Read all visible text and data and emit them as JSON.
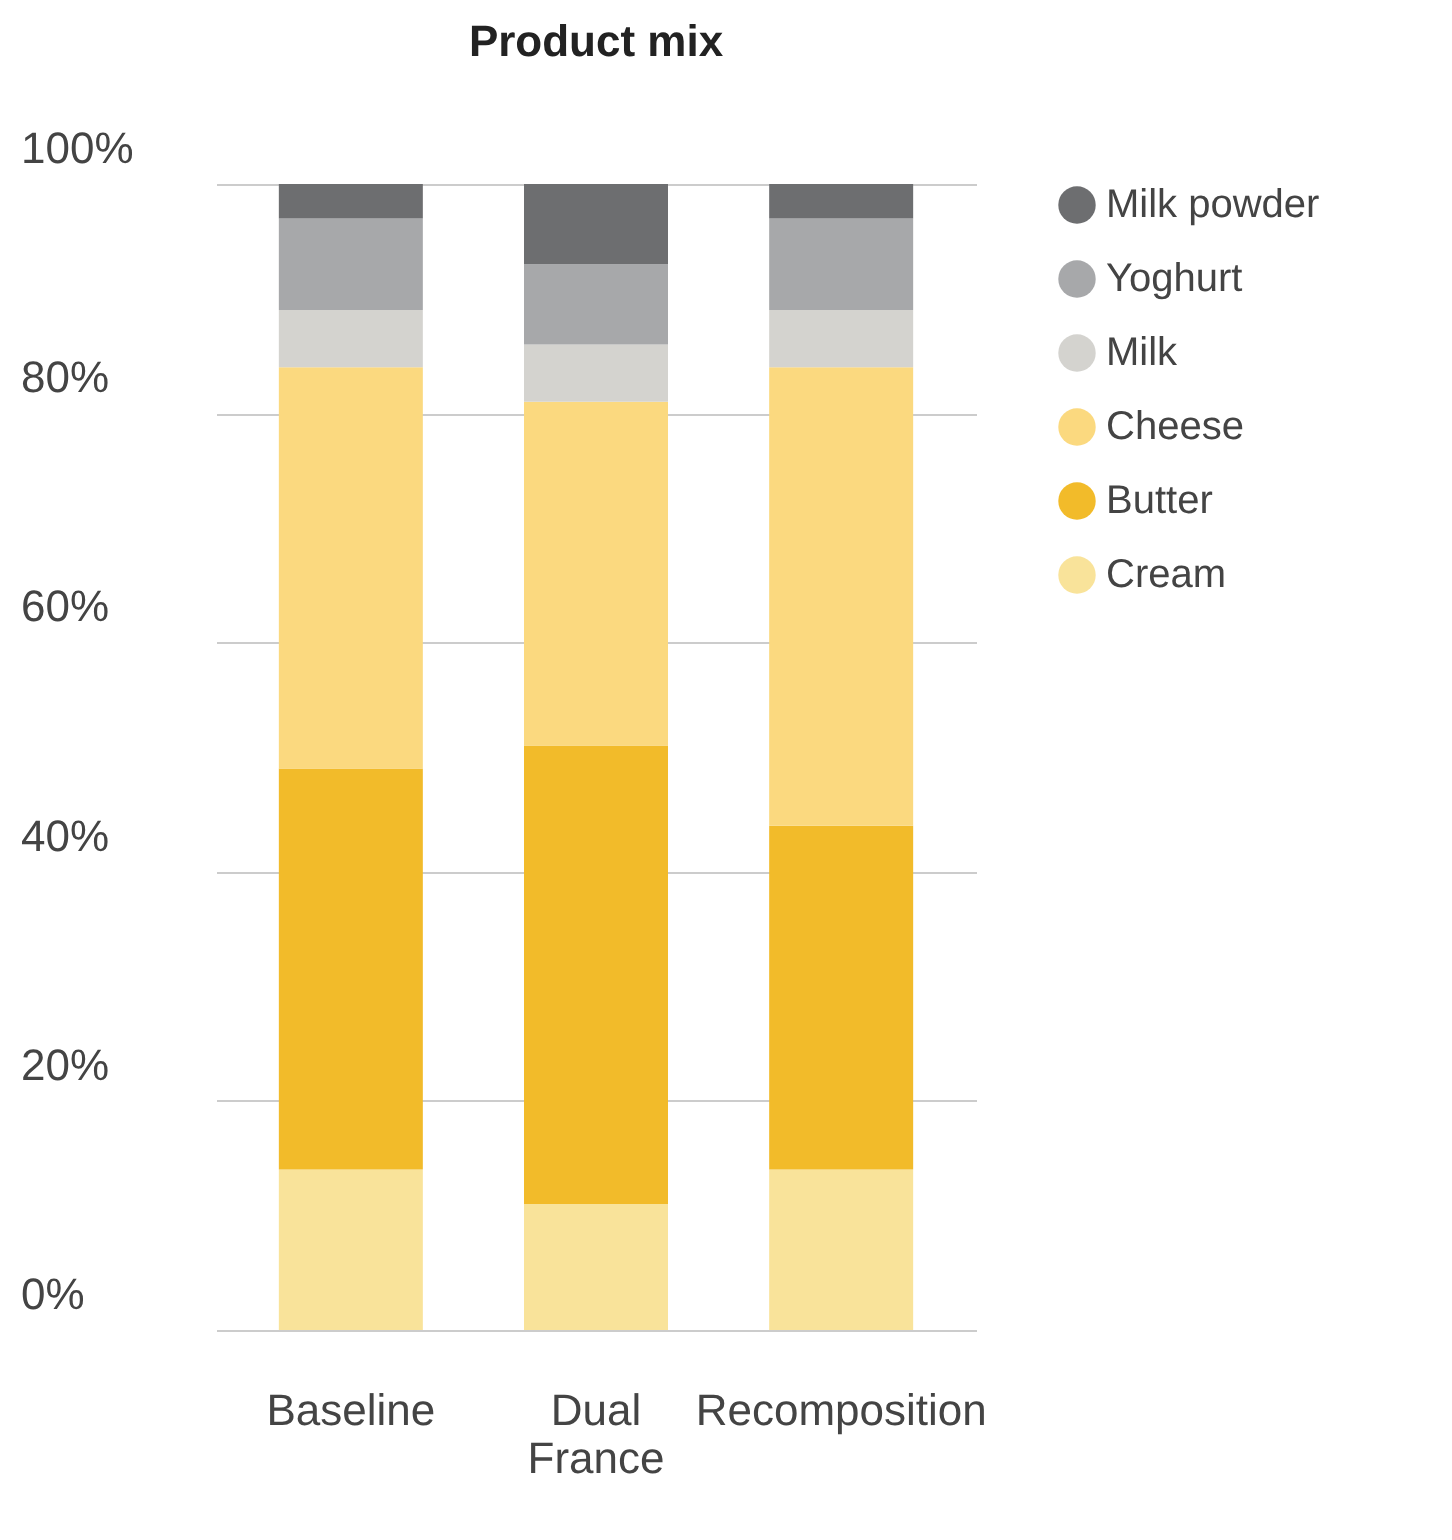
{
  "chart_data": {
    "type": "bar",
    "title": "Product mix",
    "stacked": true,
    "categories": [
      "Baseline",
      "Dual France",
      "Recomposition"
    ],
    "series": [
      {
        "name": "Cream",
        "color": "#f9e39a",
        "values": [
          14,
          11,
          14
        ]
      },
      {
        "name": "Butter",
        "color": "#f2bb2a",
        "values": [
          35,
          40,
          30
        ]
      },
      {
        "name": "Cheese",
        "color": "#fbd97f",
        "values": [
          35,
          30,
          40
        ]
      },
      {
        "name": "Milk",
        "color": "#d4d3cf",
        "values": [
          5,
          5,
          5
        ]
      },
      {
        "name": "Yoghurt",
        "color": "#a7a8aa",
        "values": [
          8,
          7,
          8
        ]
      },
      {
        "name": "Milk powder",
        "color": "#6d6e70",
        "values": [
          3,
          7,
          3
        ]
      }
    ],
    "ylim": [
      0,
      100
    ],
    "yticks": [
      {
        "value": 0,
        "label": "0%"
      },
      {
        "value": 20,
        "label": "20%"
      },
      {
        "value": 40,
        "label": "40%"
      },
      {
        "value": 60,
        "label": "60%"
      },
      {
        "value": 80,
        "label": "80%"
      },
      {
        "value": 100,
        "label": "100%"
      }
    ],
    "grid": "y",
    "legend": "right"
  }
}
